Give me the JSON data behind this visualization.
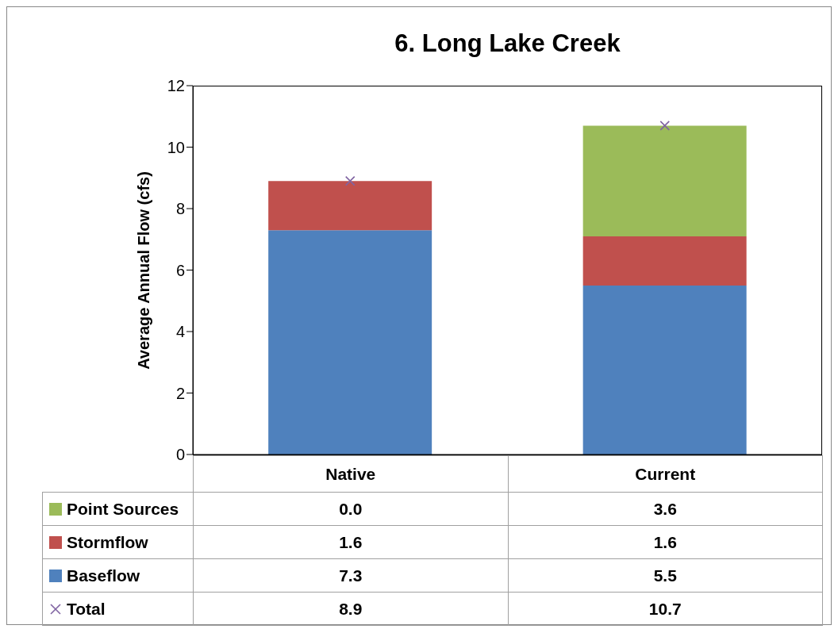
{
  "chart_data": {
    "type": "bar",
    "title": "6. Long Lake Creek",
    "ylabel": "Average Annual Flow (cfs)",
    "categories": [
      "Native",
      "Current"
    ],
    "stacked": true,
    "ylim": [
      0,
      12
    ],
    "yticks": [
      0,
      2,
      4,
      6,
      8,
      10,
      12
    ],
    "legend": "bottom",
    "series": [
      {
        "name": "Baseflow",
        "color": "#4f81bd",
        "values": [
          7.3,
          5.5
        ],
        "value_labels": [
          "7.3",
          "5.5"
        ]
      },
      {
        "name": "Stormflow",
        "color": "#c0504d",
        "values": [
          1.6,
          1.6
        ],
        "value_labels": [
          "1.6",
          "1.6"
        ]
      },
      {
        "name": "Point Sources",
        "color": "#9bbb59",
        "values": [
          0,
          3.6
        ],
        "value_labels": [
          "0.0",
          "3.6"
        ]
      },
      {
        "name": "Total",
        "type": "scatter",
        "marker": "cross",
        "color": "#8064a2",
        "values": [
          8.9,
          10.7
        ],
        "value_labels": [
          "8.9",
          "10.7"
        ]
      }
    ]
  }
}
